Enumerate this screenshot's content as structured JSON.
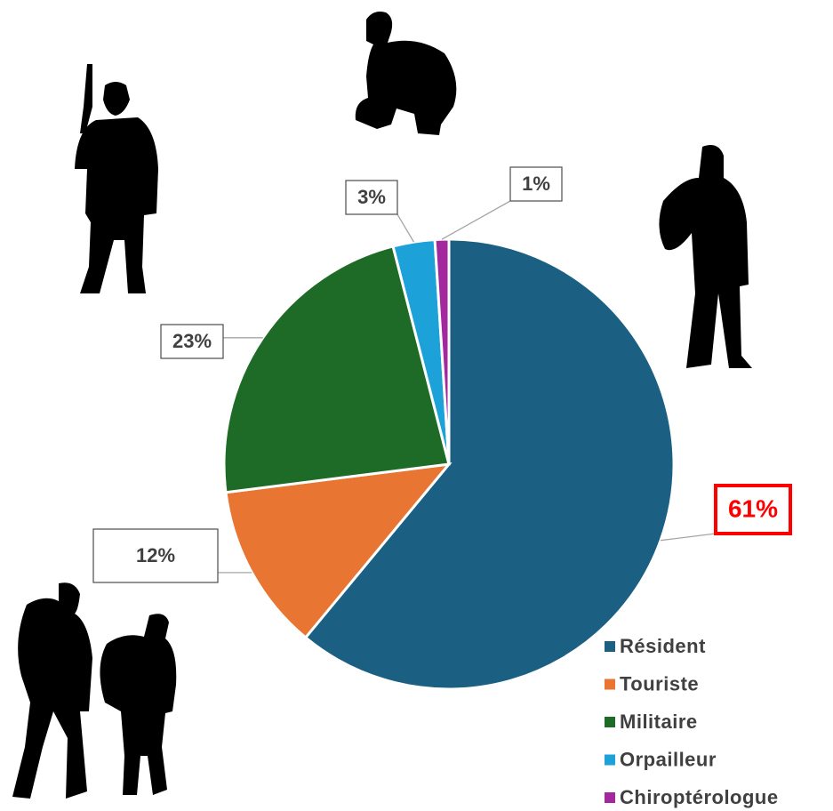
{
  "chart_data": {
    "type": "pie",
    "categories": [
      "Résident",
      "Touriste",
      "Militaire",
      "Orpailleur",
      "Chiroptérologue"
    ],
    "values": [
      61,
      12,
      23,
      3,
      1
    ],
    "value_labels": [
      "61%",
      "12%",
      "23%",
      "3%",
      "1%"
    ],
    "colors": [
      "#1b5f83",
      "#e87532",
      "#1e6b27",
      "#1ca1d8",
      "#a3279d"
    ]
  }
}
